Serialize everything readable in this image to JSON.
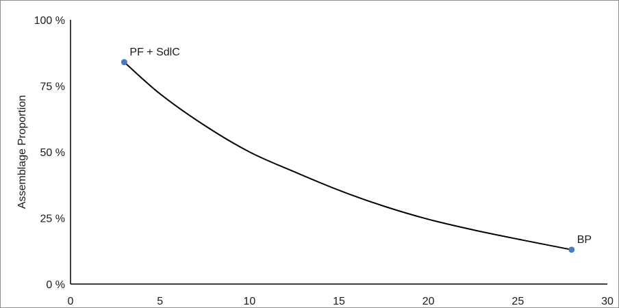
{
  "chart_data": {
    "type": "line",
    "ylabel": "Assemblage Proportion",
    "xlabel": "",
    "xlim": [
      0,
      30
    ],
    "ylim": [
      0,
      100
    ],
    "x_ticks": [
      "0",
      "5",
      "10",
      "15",
      "20",
      "25",
      "30"
    ],
    "y_ticks": [
      "0 %",
      "25 %",
      "50 %",
      "75 %",
      "100 %"
    ],
    "grid": false,
    "legend": "none",
    "line_color": "#000000",
    "point_color": "#4a7bbf",
    "series": [
      {
        "x": [
          3,
          5,
          7.5,
          10,
          12.5,
          15,
          17.5,
          20,
          22.5,
          25,
          28
        ],
        "y": [
          84,
          72,
          60,
          50,
          42.5,
          35.5,
          29.5,
          24.5,
          20.5,
          17,
          13
        ]
      }
    ],
    "points": [
      {
        "x": 3,
        "y": 84,
        "label": "PF + SdlC"
      },
      {
        "x": 28,
        "y": 13,
        "label": "BP"
      }
    ]
  }
}
